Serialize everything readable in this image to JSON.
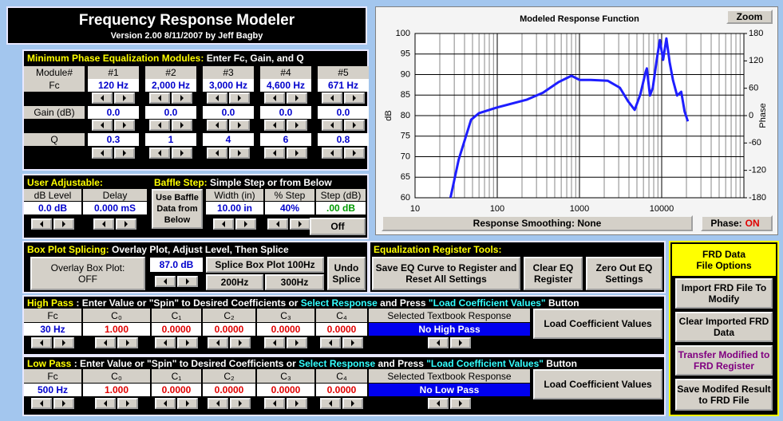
{
  "header": {
    "title": "Frequency Response Modeler",
    "subtitle": "Version 2.00  8/11/2007 by Jeff Bagby"
  },
  "chart_data": {
    "type": "line",
    "title": "Modeled Response Function",
    "ylabel": "dB",
    "y2label": "Phase",
    "x": [
      27,
      34,
      48,
      60,
      100,
      230,
      360,
      560,
      800,
      1000,
      1370,
      2200,
      3100,
      3900,
      4700,
      5500,
      6400,
      6600,
      7200,
      7800,
      8700,
      9500,
      10400,
      11400,
      12500,
      13700,
      15400,
      17300,
      19000,
      20800
    ],
    "values": [
      60,
      69.3,
      79,
      80.6,
      82,
      83.9,
      85.6,
      88.2,
      89.7,
      88.7,
      88.7,
      88.5,
      86.8,
      83.5,
      81.4,
      85.2,
      90.7,
      91.5,
      84.9,
      86.8,
      93.6,
      98.4,
      93.6,
      98.8,
      93,
      88.7,
      84.9,
      85.8,
      81,
      78.6
    ],
    "color": "#1e1eff",
    "log_x": true,
    "grid": true,
    "xlim": [
      10,
      100000
    ],
    "xticks": [
      10,
      100,
      1000,
      10000
    ],
    "ylim": [
      60,
      100
    ],
    "yticks": [
      60,
      65,
      70,
      75,
      80,
      85,
      90,
      95,
      100
    ],
    "y2lim": [
      -180,
      180
    ],
    "y2ticks": [
      -180,
      -120,
      -60,
      0,
      60,
      120,
      180
    ]
  },
  "chart_buttons": {
    "zoom": "Zoom",
    "smoothing": "Response Smoothing: None",
    "phase_label": "Phase:",
    "phase_value": "ON"
  },
  "eq_modules": {
    "title_parts": [
      "Minimum Phase Equalization Modules:",
      " Enter Fc, Gain, and Q"
    ],
    "module_label": "Module#",
    "modules": [
      "#1",
      "#2",
      "#3",
      "#4",
      "#5"
    ],
    "fc_label": "Fc",
    "fc": [
      "120 Hz",
      "2,000 Hz",
      "3,000 Hz",
      "4,600 Hz",
      "671 Hz"
    ],
    "gain_label": "Gain (dB)",
    "gain": [
      "0.0",
      "0.0",
      "0.0",
      "0.0",
      "0.0"
    ],
    "q_label": "Q",
    "q": [
      "0.3",
      "1",
      "4",
      "6",
      "0.8"
    ]
  },
  "user_adjustable": {
    "title": "User Adjustable:",
    "db_level_label": "dB Level",
    "delay_label": "Delay",
    "db_level": "0.0 dB",
    "delay": "0.000 mS"
  },
  "baffle_step": {
    "title_parts": [
      "Baffle Step:",
      " Simple Step or from Below"
    ],
    "use_baffle": "Use Baffle Data from Below",
    "width_label": "Width (in)",
    "step_pct_label": "% Step",
    "step_db_label": "Step (dB)",
    "width": "10.00 in",
    "step_pct": "40%",
    "step_db": ".00 dB",
    "off": "Off"
  },
  "box_plot": {
    "title_parts": [
      "Box Plot Splicing:",
      " Overlay Plot, Adjust Level, Then Splice"
    ],
    "overlay_label": "Overlay Box Plot:",
    "overlay_value": "OFF",
    "level": "87.0 dB",
    "splice100": "Splice Box Plot 100Hz",
    "splice200": "200Hz",
    "splice300": "300Hz",
    "undo": "Undo Splice"
  },
  "eq_register": {
    "title": "Equalization Register Tools:",
    "save": "Save EQ Curve to Register and Reset All Settings",
    "clear": "Clear EQ Register",
    "zero": "Zero Out EQ Settings"
  },
  "high_pass": {
    "title_parts": [
      "High Pass",
      " : Enter Value or \"Spin\" to Desired Coefficients or ",
      "Select Response",
      " and Press ",
      "\"Load Coefficient Values\"",
      " Button"
    ],
    "headers": [
      "Fc",
      "C₀",
      "C₁",
      "C₂",
      "C₃",
      "C₄"
    ],
    "values": [
      "30 Hz",
      "1.000",
      "0.0000",
      "0.0000",
      "0.0000",
      "0.0000"
    ],
    "response_header": "Selected Textbook Response",
    "response": "No High Pass",
    "load": "Load Coefficient Values"
  },
  "low_pass": {
    "title_parts": [
      "Low Pass",
      " : Enter Value or \"Spin\" to Desired Coefficients or ",
      "Select Response",
      " and Press ",
      "\"Load Coefficient Values\"",
      " Button"
    ],
    "headers": [
      "Fc",
      "C₀",
      "C₁",
      "C₂",
      "C₃",
      "C₄"
    ],
    "values": [
      "500 Hz",
      "1.000",
      "0.0000",
      "0.0000",
      "0.0000",
      "0.0000"
    ],
    "response_header": "Selected Textbook Response",
    "response": "No Low Pass",
    "load": "Load Coefficient Values"
  },
  "frd": {
    "title_lines": [
      "FRD Data",
      "File Options"
    ],
    "import": "Import FRD File To Modify",
    "clear": "Clear Imported FRD Data",
    "transfer": "Transfer Modified to FRD Register",
    "save": "Save Modifed Result to FRD File"
  }
}
